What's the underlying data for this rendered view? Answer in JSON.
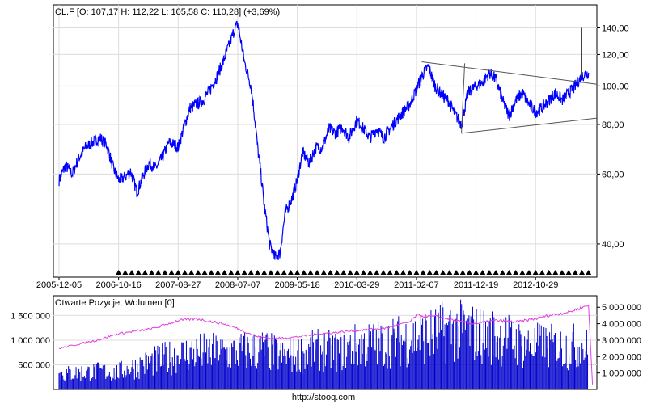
{
  "chart_data": [
    {
      "type": "line",
      "title": "CL.F [O: 107,17  H: 112,22  L: 105,58  C: 110,28] (+3,69%)",
      "xlabel": "",
      "ylabel": "",
      "y_scale": "log",
      "ylim": [
        33,
        160
      ],
      "y_ticks": [
        40,
        60,
        80,
        100,
        120,
        140
      ],
      "y_tick_labels": [
        "40,00",
        "60,00",
        "80,00",
        "100,00",
        "120,00",
        "140,00"
      ],
      "x_tick_labels": [
        "2005-12-05",
        "2006-10-16",
        "2007-08-27",
        "2008-07-07",
        "2009-05-18",
        "2010-03-29",
        "2011-02-07",
        "2011-12-19",
        "2012-10-29"
      ],
      "x_range": [
        "2005-12-05",
        "2013-09-01"
      ],
      "grid": true,
      "series": [
        {
          "color": "#0000ff",
          "x": [
            "2005-12-05",
            "2006-01-09",
            "2006-02-13",
            "2006-03-20",
            "2006-04-24",
            "2006-05-29",
            "2006-07-10",
            "2006-08-14",
            "2006-09-18",
            "2006-10-16",
            "2006-11-20",
            "2006-12-18",
            "2007-01-22",
            "2007-02-26",
            "2007-03-26",
            "2007-04-30",
            "2007-06-04",
            "2007-07-09",
            "2007-08-13",
            "2007-08-27",
            "2007-09-24",
            "2007-10-29",
            "2007-12-03",
            "2008-01-07",
            "2008-02-11",
            "2008-03-17",
            "2008-04-21",
            "2008-05-26",
            "2008-06-23",
            "2008-07-07",
            "2008-08-11",
            "2008-09-15",
            "2008-10-20",
            "2008-11-24",
            "2008-12-22",
            "2009-01-19",
            "2009-02-16",
            "2009-03-16",
            "2009-04-20",
            "2009-05-18",
            "2009-06-15",
            "2009-07-20",
            "2009-08-24",
            "2009-09-28",
            "2009-11-02",
            "2009-12-07",
            "2010-01-11",
            "2010-02-15",
            "2010-03-29",
            "2010-05-03",
            "2010-06-07",
            "2010-07-12",
            "2010-08-16",
            "2010-09-20",
            "2010-10-25",
            "2010-11-29",
            "2011-01-03",
            "2011-02-07",
            "2011-03-07",
            "2011-04-11",
            "2011-05-16",
            "2011-06-20",
            "2011-07-25",
            "2011-08-29",
            "2011-10-03",
            "2011-11-07",
            "2011-12-19",
            "2012-01-23",
            "2012-02-27",
            "2012-04-02",
            "2012-05-07",
            "2012-06-11",
            "2012-07-16",
            "2012-08-20",
            "2012-09-24",
            "2012-10-29",
            "2012-12-03",
            "2013-01-07",
            "2013-02-11",
            "2013-03-18",
            "2013-04-22",
            "2013-05-27",
            "2013-07-01",
            "2013-08-05"
          ],
          "y": [
            58,
            63,
            60,
            66,
            70,
            72,
            74,
            71,
            62,
            58,
            59,
            61,
            54,
            60,
            64,
            62,
            66,
            72,
            71,
            70,
            78,
            88,
            90,
            92,
            98,
            105,
            115,
            128,
            140,
            143,
            115,
            100,
            70,
            50,
            40,
            37,
            38,
            48,
            52,
            58,
            68,
            64,
            70,
            70,
            78,
            76,
            79,
            74,
            82,
            78,
            74,
            78,
            74,
            78,
            82,
            86,
            90,
            98,
            106,
            112,
            100,
            95,
            92,
            85,
            80,
            96,
            100,
            102,
            108,
            104,
            92,
            84,
            92,
            96,
            90,
            86,
            88,
            92,
            96,
            92,
            96,
            100,
            106,
            108
          ]
        }
      ],
      "annotations": {
        "price_spike": {
          "date": "2013-07-01",
          "high": 140
        },
        "trendlines": [
          {
            "points": [
              [
                "2011-03-07",
                115
              ],
              [
                "2013-09-01",
                101
              ]
            ]
          },
          {
            "points": [
              [
                "2011-10-03",
                76
              ],
              [
                "2013-09-01",
                83
              ]
            ]
          },
          {
            "points": [
              [
                "2011-10-03",
                76
              ],
              [
                "2011-10-03",
                114
              ]
            ]
          }
        ],
        "event_markers": {
          "symbol": "▲",
          "from": "2006-10-16",
          "to": "2013-08-05",
          "count": 72
        }
      }
    },
    {
      "type": "bar",
      "title": "Otwarte Pozycje, Wolumen [0]",
      "y_left_ticks": [
        500000,
        1000000,
        1500000
      ],
      "y_left_tick_labels": [
        "500 000",
        "1 000 000",
        "1 500 000"
      ],
      "y_right_ticks": [
        1000000,
        2000000,
        3000000,
        4000000,
        5000000
      ],
      "y_right_tick_labels": [
        "1 000 000",
        "2 000 000",
        "3 000 000",
        "4 000 000",
        "5 000 000"
      ],
      "ylim_left": [
        0,
        1900000
      ],
      "ylim_right": [
        0,
        5700000
      ],
      "grid": true,
      "series": [
        {
          "role": "volume",
          "color": "#0000cc",
          "x": [
            "2005-12-05",
            "2006-03-20",
            "2006-06-26",
            "2006-10-02",
            "2007-01-08",
            "2007-04-16",
            "2007-07-23",
            "2007-10-29",
            "2008-02-04",
            "2008-05-12",
            "2008-08-18",
            "2008-11-24",
            "2009-03-02",
            "2009-06-08",
            "2009-09-14",
            "2009-12-21",
            "2010-03-29",
            "2010-07-05",
            "2010-10-11",
            "2011-01-17",
            "2011-04-25",
            "2011-08-01",
            "2011-11-07",
            "2012-02-13",
            "2012-05-21",
            "2012-08-27",
            "2012-12-03",
            "2013-03-11",
            "2013-06-17",
            "2013-08-05"
          ],
          "values": [
            380000,
            420000,
            450000,
            430000,
            560000,
            700000,
            820000,
            920000,
            940000,
            900000,
            980000,
            1000000,
            820000,
            900000,
            1000000,
            960000,
            1100000,
            1150000,
            1200000,
            1300000,
            1350000,
            1500000,
            1450000,
            1350000,
            1300000,
            1100000,
            1100000,
            1050000,
            1100000,
            1000000
          ]
        },
        {
          "role": "open interest",
          "color": "#e040e0",
          "x": [
            "2005-12-05",
            "2006-06-26",
            "2006-10-16",
            "2007-04-16",
            "2007-08-27",
            "2007-12-03",
            "2008-04-21",
            "2008-07-07",
            "2008-10-20",
            "2009-01-19",
            "2009-05-18",
            "2009-09-28",
            "2010-01-11",
            "2010-03-29",
            "2010-08-16",
            "2011-01-03",
            "2011-02-07",
            "2011-06-20",
            "2011-10-03",
            "2011-12-19",
            "2012-04-02",
            "2012-07-16",
            "2012-10-29",
            "2013-01-07",
            "2013-04-22",
            "2013-07-01",
            "2013-08-05",
            "2013-08-26"
          ],
          "values": [
            2500000,
            3000000,
            3400000,
            3700000,
            4200000,
            4300000,
            4000000,
            3700000,
            3200000,
            3100000,
            3200000,
            3400000,
            3500000,
            3600000,
            3700000,
            4100000,
            4500000,
            4400000,
            4100000,
            4000000,
            4200000,
            4100000,
            4300000,
            4500000,
            4700000,
            5000000,
            5100000,
            300000
          ]
        }
      ]
    }
  ],
  "footer": {
    "text": "http://stooq.com"
  }
}
